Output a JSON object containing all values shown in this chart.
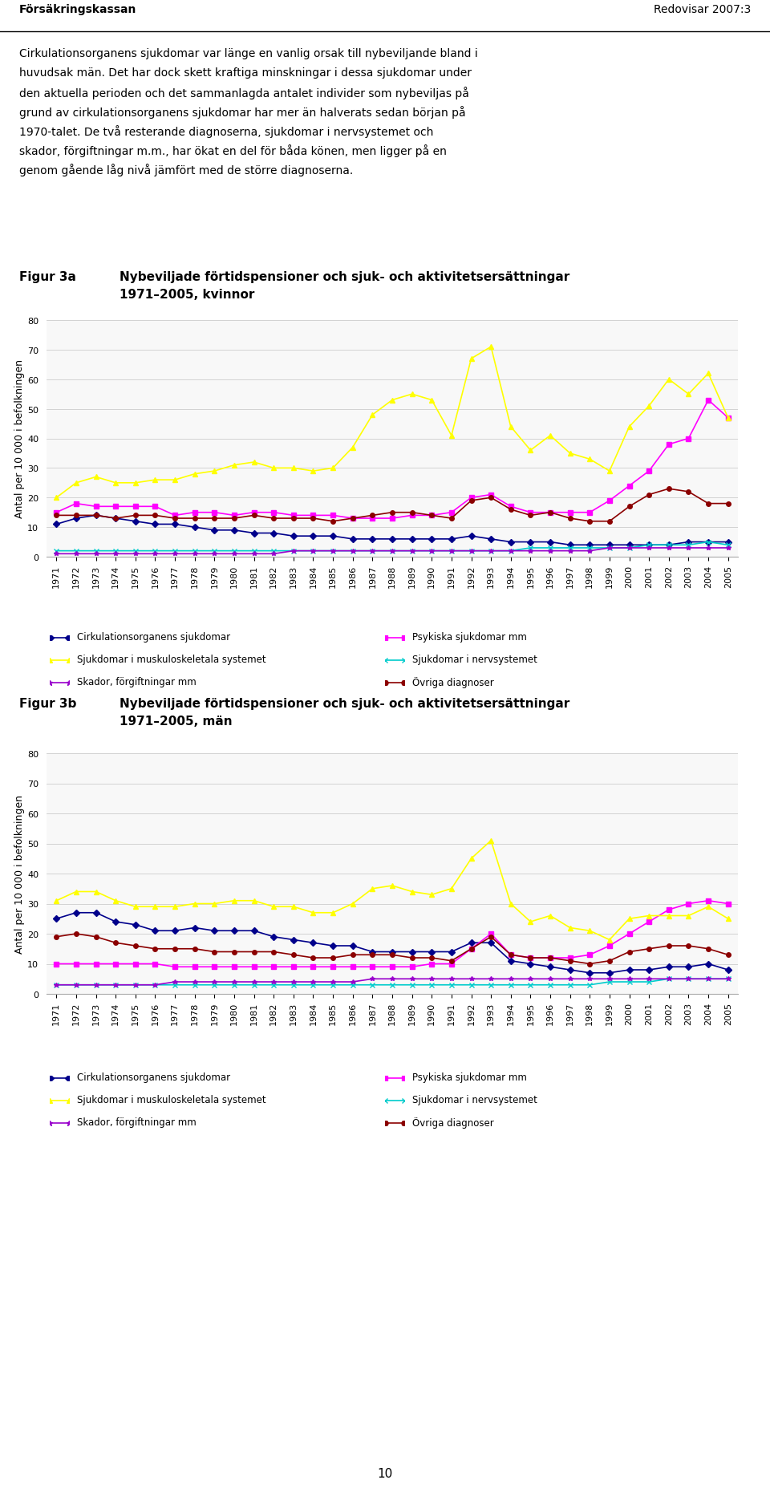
{
  "years": [
    1971,
    1972,
    1973,
    1974,
    1975,
    1976,
    1977,
    1978,
    1979,
    1980,
    1981,
    1982,
    1983,
    1984,
    1985,
    1986,
    1987,
    1988,
    1989,
    1990,
    1991,
    1992,
    1993,
    1994,
    1995,
    1996,
    1997,
    1998,
    1999,
    2000,
    2001,
    2002,
    2003,
    2004,
    2005
  ],
  "women": {
    "cirk": [
      11,
      13,
      14,
      13,
      12,
      11,
      11,
      10,
      9,
      9,
      8,
      8,
      7,
      7,
      7,
      6,
      6,
      6,
      6,
      6,
      6,
      7,
      6,
      5,
      5,
      5,
      4,
      4,
      4,
      4,
      4,
      4,
      5,
      5,
      5
    ],
    "psyk": [
      15,
      18,
      17,
      17,
      17,
      17,
      14,
      15,
      15,
      14,
      15,
      15,
      14,
      14,
      14,
      13,
      13,
      13,
      14,
      14,
      15,
      20,
      21,
      17,
      15,
      15,
      15,
      15,
      19,
      24,
      29,
      38,
      40,
      53,
      47
    ],
    "musk": [
      20,
      25,
      27,
      25,
      25,
      26,
      26,
      28,
      29,
      31,
      32,
      30,
      30,
      29,
      30,
      37,
      48,
      53,
      55,
      53,
      41,
      67,
      71,
      44,
      36,
      41,
      35,
      33,
      29,
      44,
      51,
      60,
      55,
      62,
      47
    ],
    "nerv": [
      2,
      2,
      2,
      2,
      2,
      2,
      2,
      2,
      2,
      2,
      2,
      2,
      2,
      2,
      2,
      2,
      2,
      2,
      2,
      2,
      2,
      2,
      2,
      2,
      3,
      3,
      3,
      3,
      3,
      3,
      4,
      4,
      4,
      5,
      4
    ],
    "skad": [
      1,
      1,
      1,
      1,
      1,
      1,
      1,
      1,
      1,
      1,
      1,
      1,
      2,
      2,
      2,
      2,
      2,
      2,
      2,
      2,
      2,
      2,
      2,
      2,
      2,
      2,
      2,
      2,
      3,
      3,
      3,
      3,
      3,
      3,
      3
    ],
    "ovri": [
      14,
      14,
      14,
      13,
      14,
      14,
      13,
      13,
      13,
      13,
      14,
      13,
      13,
      13,
      12,
      13,
      14,
      15,
      15,
      14,
      13,
      19,
      20,
      16,
      14,
      15,
      13,
      12,
      12,
      17,
      21,
      23,
      22,
      18,
      18
    ]
  },
  "men": {
    "cirk": [
      25,
      27,
      27,
      24,
      23,
      21,
      21,
      22,
      21,
      21,
      21,
      19,
      18,
      17,
      16,
      16,
      14,
      14,
      14,
      14,
      14,
      17,
      17,
      11,
      10,
      9,
      8,
      7,
      7,
      8,
      8,
      9,
      9,
      10,
      8
    ],
    "psyk": [
      10,
      10,
      10,
      10,
      10,
      10,
      9,
      9,
      9,
      9,
      9,
      9,
      9,
      9,
      9,
      9,
      9,
      9,
      9,
      10,
      10,
      15,
      20,
      13,
      12,
      12,
      12,
      13,
      16,
      20,
      24,
      28,
      30,
      31,
      30
    ],
    "musk": [
      31,
      34,
      34,
      31,
      29,
      29,
      29,
      30,
      30,
      31,
      31,
      29,
      29,
      27,
      27,
      30,
      35,
      36,
      34,
      33,
      35,
      45,
      51,
      30,
      24,
      26,
      22,
      21,
      18,
      25,
      26,
      26,
      26,
      29,
      25
    ],
    "nerv": [
      3,
      3,
      3,
      3,
      3,
      3,
      3,
      3,
      3,
      3,
      3,
      3,
      3,
      3,
      3,
      3,
      3,
      3,
      3,
      3,
      3,
      3,
      3,
      3,
      3,
      3,
      3,
      3,
      4,
      4,
      4,
      5,
      5,
      5,
      5
    ],
    "skad": [
      3,
      3,
      3,
      3,
      3,
      3,
      4,
      4,
      4,
      4,
      4,
      4,
      4,
      4,
      4,
      4,
      5,
      5,
      5,
      5,
      5,
      5,
      5,
      5,
      5,
      5,
      5,
      5,
      5,
      5,
      5,
      5,
      5,
      5,
      5
    ],
    "ovri": [
      19,
      20,
      19,
      17,
      16,
      15,
      15,
      15,
      14,
      14,
      14,
      14,
      13,
      12,
      12,
      13,
      13,
      13,
      12,
      12,
      11,
      15,
      19,
      13,
      12,
      12,
      11,
      10,
      11,
      14,
      15,
      16,
      16,
      15,
      13
    ]
  },
  "title_a_label": "Figur 3a",
  "title_a_text": "Nybeviljade förtidspensioner och sjuk- och aktivitetsersättningar\n1971–2005, kvinnor",
  "title_b_label": "Figur 3b",
  "title_b_text": "Nybeviljade förtidspensioner och sjuk- och aktivitetsersättningar\n1971–2005, män",
  "ylabel": "Antal per 10 000 i befolkningen",
  "ylim": [
    0,
    80
  ],
  "yticks": [
    0,
    10,
    20,
    30,
    40,
    50,
    60,
    70,
    80
  ],
  "legend_labels": [
    "Cirkulationsorganens sjukdomar",
    "Psykiska sjukdomar mm",
    "Sjukdomar i muskuloskeletala systemet",
    "Sjukdomar i nervsystemet",
    "Skador, förgiftningar mm",
    "Övriga diagnoser"
  ],
  "colors": {
    "cirk": "#00008B",
    "psyk": "#FF00FF",
    "musk": "#FFFF00",
    "nerv": "#00CCCC",
    "skad": "#9900CC",
    "ovri": "#8B0000"
  },
  "markers": {
    "cirk": "D",
    "psyk": "s",
    "musk": "^",
    "nerv": "x",
    "skad": "*",
    "ovri": "o"
  },
  "background_color": "#ffffff",
  "header_text": "Försäkringskassan",
  "header_right": "Redovisar 2007:3",
  "body_text": "Cirkulationsorganens sjukdomar var länge en vanlig orsak till nybeviljande bland i\nhuvudsak män. Det har dock skett kraftiga minskningar i dessa sjukdomar under\nden aktuella perioden och det sammanlagda antalet individer som nybeviljas på\ngrund av cirkulationsorganens sjukdomar har mer än halverats sedan början på\n1970-talet. De två resterande diagnoserna, sjukdomar i nervsystemet och\nskador, förgiftningar m.m., har ökat en del för båda könen, men ligger på en\ngenom gående låg nivå jämfört med de större diagnoserna.",
  "page_number": "10"
}
